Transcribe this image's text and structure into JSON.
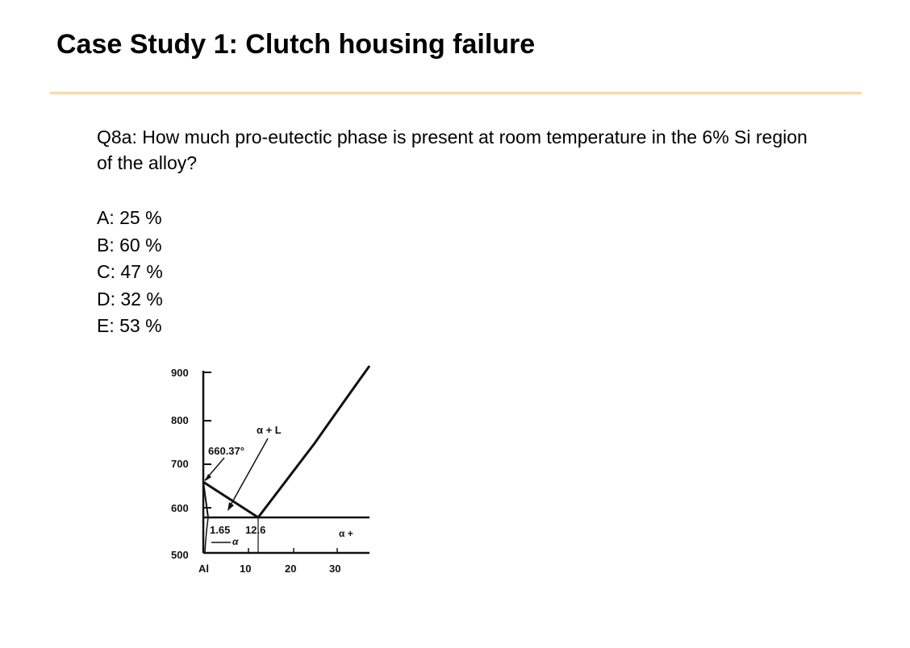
{
  "slide": {
    "title": "Case Study 1: Clutch housing failure",
    "accent_color": "#f2c070"
  },
  "question": {
    "text": "Q8a: How much pro-eutectic phase is present at room temperature in the 6% Si region of the alloy?"
  },
  "options": [
    "A: 25 %",
    "B: 60 %",
    "C: 47 %",
    "D: 32 %",
    "E: 53 %"
  ],
  "diagram": {
    "y_ticks": [
      "900",
      "800",
      "700",
      "600",
      "500"
    ],
    "x_ticks": [
      "Al",
      "10",
      "20",
      "30"
    ],
    "labels": {
      "melting_point": "660.37°",
      "alpha_liquid": "α + L",
      "solubility": "1.65",
      "eutectic": "12.6",
      "alpha": "α",
      "alpha_plus": "α +"
    }
  }
}
